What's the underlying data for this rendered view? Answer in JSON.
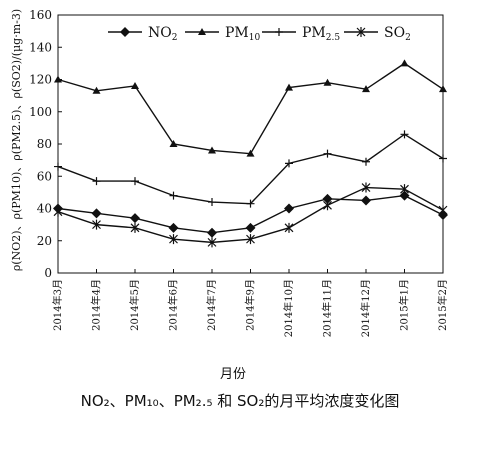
{
  "chart_data": {
    "type": "line",
    "title": "NO₂、PM₁₀、PM₂.₅ 和 SO₂的月平均浓度变化图",
    "xlabel": "月份",
    "ylabel": "ρ(NO2)、ρ(PM10)、ρ(PM2.5)、ρ(SO2)/(μg·m-3)",
    "ylim": [
      0,
      160
    ],
    "yticks": [
      0,
      20,
      40,
      60,
      80,
      100,
      120,
      140,
      160
    ],
    "grid": false,
    "legend_position": "top",
    "categories": [
      "2014年3月",
      "2014年4月",
      "2014年5月",
      "2014年6月",
      "2014年7月",
      "2014年9月",
      "2014年10月",
      "2014年11月",
      "2014年12月",
      "2015年1月",
      "2015年2月"
    ],
    "series": [
      {
        "name": "NO2",
        "legend_main": "NO",
        "legend_sub": "2",
        "marker": "diamond",
        "values": [
          40,
          37,
          34,
          28,
          25,
          28,
          40,
          46,
          45,
          48,
          36
        ]
      },
      {
        "name": "PM10",
        "legend_main": "PM",
        "legend_sub": "10",
        "marker": "triangle",
        "values": [
          120,
          113,
          116,
          80,
          76,
          74,
          115,
          118,
          114,
          130,
          114
        ]
      },
      {
        "name": "PM2.5",
        "legend_main": "PM",
        "legend_sub": "2.5",
        "marker": "plus",
        "values": [
          66,
          57,
          57,
          48,
          44,
          43,
          68,
          74,
          69,
          86,
          71
        ]
      },
      {
        "name": "SO2",
        "legend_main": "SO",
        "legend_sub": "2",
        "marker": "star",
        "values": [
          38,
          30,
          28,
          21,
          19,
          21,
          28,
          42,
          53,
          52,
          39
        ]
      }
    ]
  }
}
